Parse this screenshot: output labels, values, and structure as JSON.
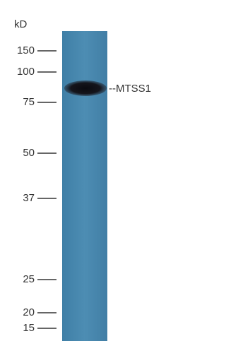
{
  "unit": "kD",
  "markers": [
    "150",
    "100",
    "75",
    "50",
    "37",
    "25",
    "20",
    "15"
  ],
  "band_label": "--MTSS1"
}
